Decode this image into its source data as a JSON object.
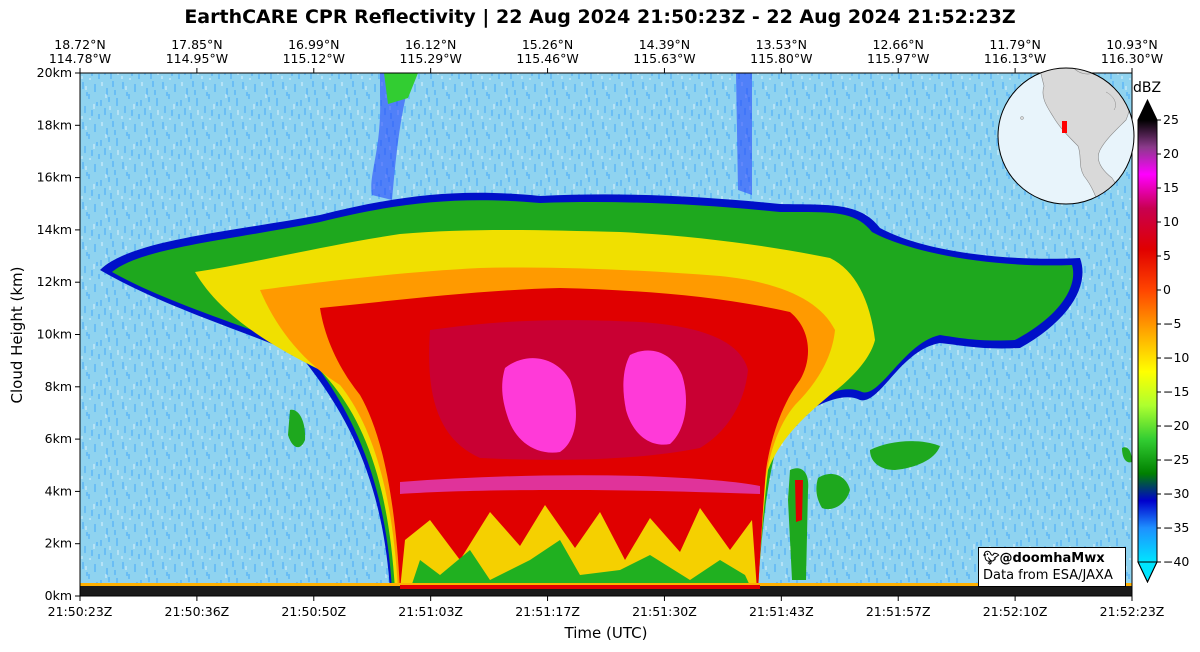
{
  "chart_data": {
    "type": "heatmap",
    "title": "EarthCARE CPR Reflectivity | 22 Aug 2024 21:50:23Z - 22 Aug 2024 21:52:23Z",
    "xlabel": "Time (UTC)",
    "ylabel": "Cloud Height (km)",
    "x_ticks": [
      "21:50:23Z",
      "21:50:36Z",
      "21:50:50Z",
      "21:51:03Z",
      "21:51:17Z",
      "21:51:30Z",
      "21:51:43Z",
      "21:51:57Z",
      "21:52:10Z",
      "21:52:23Z"
    ],
    "top_ticks": [
      {
        "lat": "18.72°N",
        "lon": "114.78°W"
      },
      {
        "lat": "17.85°N",
        "lon": "114.95°W"
      },
      {
        "lat": "16.99°N",
        "lon": "115.12°W"
      },
      {
        "lat": "16.12°N",
        "lon": "115.29°W"
      },
      {
        "lat": "15.26°N",
        "lon": "115.46°W"
      },
      {
        "lat": "14.39°N",
        "lon": "115.63°W"
      },
      {
        "lat": "13.53°N",
        "lon": "115.80°W"
      },
      {
        "lat": "12.66°N",
        "lon": "115.97°W"
      },
      {
        "lat": "11.79°N",
        "lon": "116.13°W"
      },
      {
        "lat": "10.93°N",
        "lon": "116.30°W"
      }
    ],
    "y_ticks": [
      "0km",
      "2km",
      "4km",
      "6km",
      "8km",
      "10km",
      "12km",
      "14km",
      "16km",
      "18km",
      "20km"
    ],
    "ylim": [
      0,
      20
    ],
    "colorbar": {
      "label": "dBZ",
      "range": [
        -40,
        25
      ],
      "ticks": [
        "25",
        "20",
        "15",
        "10",
        "5",
        "0",
        "−5",
        "−10",
        "−15",
        "−20",
        "−25",
        "−30",
        "−35",
        "−40"
      ],
      "stops": [
        {
          "v": -40,
          "c": "#00e5ff"
        },
        {
          "v": -35,
          "c": "#1e90ff"
        },
        {
          "v": -31,
          "c": "#0000cd"
        },
        {
          "v": -27,
          "c": "#008000"
        },
        {
          "v": -22,
          "c": "#32cd32"
        },
        {
          "v": -17,
          "c": "#adff2f"
        },
        {
          "v": -12,
          "c": "#ffff00"
        },
        {
          "v": -6,
          "c": "#ffa500"
        },
        {
          "v": 0,
          "c": "#ff4500"
        },
        {
          "v": 6,
          "c": "#e00000"
        },
        {
          "v": 12,
          "c": "#c80050"
        },
        {
          "v": 17,
          "c": "#ff00ff"
        },
        {
          "v": 21,
          "c": "#8b3a8b"
        },
        {
          "v": 25,
          "c": "#000000"
        }
      ]
    },
    "anvil_profile_km": [
      {
        "t": "21:50:23Z",
        "base": 12.5,
        "top": 12.5
      },
      {
        "t": "21:50:36Z",
        "base": 11.0,
        "top": 13.2
      },
      {
        "t": "21:50:50Z",
        "base": 8.5,
        "top": 14.3
      },
      {
        "t": "21:51:03Z",
        "base": 0,
        "top": 15.0
      },
      {
        "t": "21:51:17Z",
        "base": 0,
        "top": 14.8
      },
      {
        "t": "21:51:30Z",
        "base": 0,
        "top": 14.8
      },
      {
        "t": "21:51:43Z",
        "base": 3.5,
        "top": 14.5
      },
      {
        "t": "21:51:57Z",
        "base": 8.0,
        "top": 13.5
      },
      {
        "t": "21:52:10Z",
        "base": 10.5,
        "top": 12.5
      }
    ]
  },
  "credit": {
    "handle": "@doomhaMwx",
    "source": "Data from ESA/JAXA"
  },
  "colors": {
    "noise_bg": "#8fd3f0",
    "ocean": "#e8f4fb",
    "land": "#d9d9d9",
    "marker": "#ff0000"
  }
}
